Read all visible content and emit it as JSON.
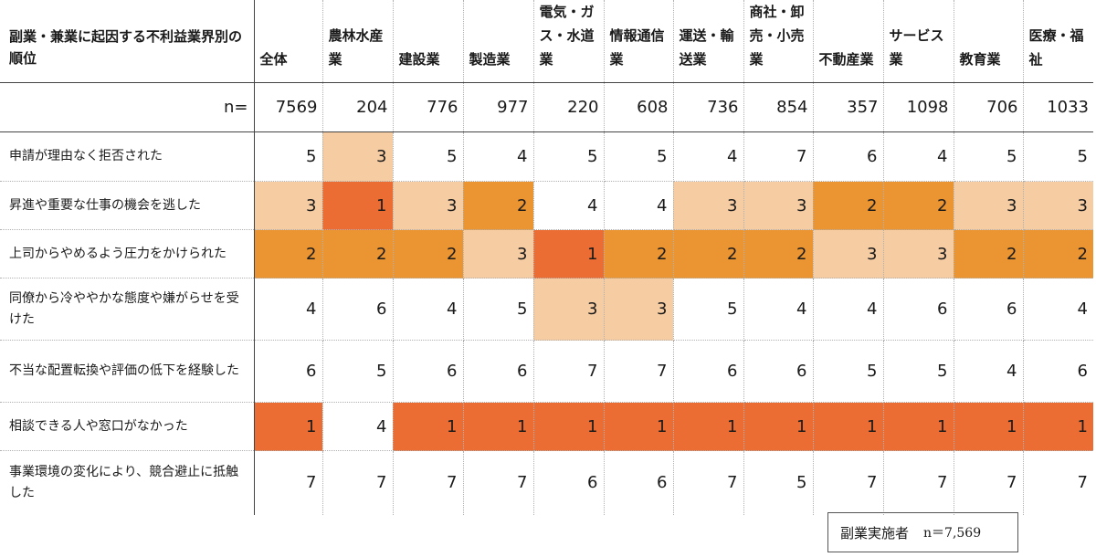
{
  "chart_data": {
    "type": "heatmap",
    "corner_label": "副業・兼業に起因する不利益業界別の順位",
    "n_label": "n=",
    "columns": [
      "全体",
      "農林水産業",
      "建設業",
      "製造業",
      "電気・ガス・水道業",
      "情報通信業",
      "運送・輸送業",
      "商社・卸売・小売業",
      "不動産業",
      "サービス業",
      "教育業",
      "医療・福祉"
    ],
    "n_values": [
      7569,
      204,
      776,
      977,
      220,
      608,
      736,
      854,
      357,
      1098,
      706,
      1033
    ],
    "rows": [
      {
        "label": "申請が理由なく拒否された",
        "values": [
          5,
          3,
          5,
          4,
          5,
          5,
          4,
          7,
          6,
          4,
          5,
          5
        ]
      },
      {
        "label": "昇進や重要な仕事の機会を逃した",
        "values": [
          3,
          1,
          3,
          2,
          4,
          4,
          3,
          3,
          2,
          2,
          3,
          3
        ]
      },
      {
        "label": "上司からやめるよう圧力をかけられた",
        "values": [
          2,
          2,
          2,
          3,
          1,
          2,
          2,
          2,
          3,
          3,
          2,
          2
        ]
      },
      {
        "label": "同僚から冷ややかな態度や嫌がらせを受けた",
        "values": [
          4,
          6,
          4,
          5,
          3,
          3,
          5,
          4,
          4,
          6,
          6,
          4
        ]
      },
      {
        "label": "不当な配置転換や評価の低下を経験した",
        "values": [
          6,
          5,
          6,
          6,
          7,
          7,
          6,
          6,
          5,
          5,
          4,
          6
        ]
      },
      {
        "label": "相談できる人や窓口がなかった",
        "values": [
          1,
          4,
          1,
          1,
          1,
          1,
          1,
          1,
          1,
          1,
          1,
          1
        ]
      },
      {
        "label": "事業環境の変化により、競合避止に抵触した",
        "values": [
          7,
          7,
          7,
          7,
          6,
          6,
          7,
          5,
          7,
          7,
          7,
          7
        ]
      }
    ],
    "colors": {
      "rank1": "#eb6d33",
      "rank2": "#ea9432",
      "rank3": "#f6cca3",
      "other": "#ffffff"
    }
  },
  "legend": {
    "label": "副業実施者",
    "n_text": "n＝7,569"
  }
}
